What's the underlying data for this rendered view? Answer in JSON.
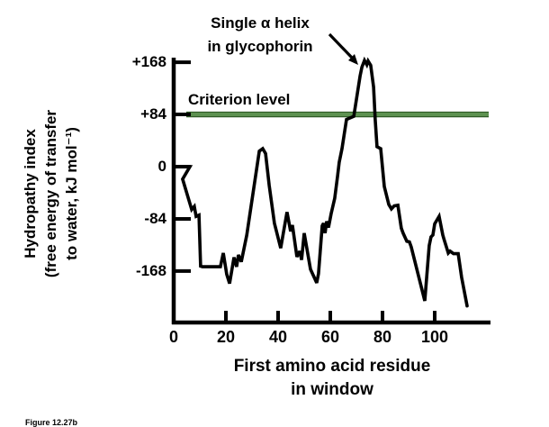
{
  "figure": {
    "annotation_line1": "Single α helix",
    "annotation_line2": "in glycophorin",
    "criterion_label": "Criterion level",
    "caption": "Figure 12.27b",
    "colors": {
      "background": "#ffffff",
      "axis": "#000000",
      "curve": "#000000",
      "text": "#000000",
      "criterion_line": "#5d9150",
      "criterion_line_edge": "#2f5b26"
    }
  },
  "chart_data": {
    "type": "line",
    "title": "",
    "xlabel": "First amino acid residue in window",
    "xlabel_lines": [
      "First amino acid residue",
      "in window"
    ],
    "ylabel": "Hydropathy index (free energy of transfer to water, kJ mol⁻¹)",
    "ylabel_lines": [
      "Hydropathy index",
      "(free energy of transfer",
      "to water, kJ mol⁻¹)"
    ],
    "xlim": [
      0,
      121
    ],
    "ylim": [
      -253,
      175
    ],
    "grid": false,
    "legend": "none",
    "x_ticks": [
      0,
      20,
      40,
      60,
      80,
      100
    ],
    "x_tick_labels": [
      "0",
      "20",
      "40",
      "60",
      "80",
      "100"
    ],
    "y_ticks": [
      168,
      84,
      0,
      -84,
      -168
    ],
    "y_tick_labels": [
      "+168",
      "+84",
      "0",
      "-84",
      "-168"
    ],
    "criterion_level": 84,
    "annotation": {
      "text": "Single α helix in glycophorin",
      "points_to_x": 74,
      "points_to_y": 168
    },
    "series": [
      {
        "name": "Glycophorin hydropathy index",
        "points": [
          [
            0,
            0
          ],
          [
            6.2,
            0
          ],
          [
            3.4,
            -20
          ],
          [
            6.9,
            -69
          ],
          [
            7.9,
            -64
          ],
          [
            8.6,
            -80
          ],
          [
            9.7,
            -78
          ],
          [
            10.3,
            -160
          ],
          [
            11,
            -161
          ],
          [
            17.9,
            -161
          ],
          [
            19,
            -139
          ],
          [
            20.3,
            -173
          ],
          [
            21.4,
            -188
          ],
          [
            23.1,
            -146
          ],
          [
            24.1,
            -161
          ],
          [
            24.8,
            -142
          ],
          [
            25.9,
            -153
          ],
          [
            28,
            -110
          ],
          [
            32.8,
            25
          ],
          [
            34.1,
            29
          ],
          [
            35.2,
            21
          ],
          [
            36.6,
            -30
          ],
          [
            38.6,
            -91
          ],
          [
            41,
            -131
          ],
          [
            43.4,
            -73
          ],
          [
            44.8,
            -104
          ],
          [
            45.5,
            -94
          ],
          [
            47.2,
            -145
          ],
          [
            48.3,
            -136
          ],
          [
            49,
            -150
          ],
          [
            50,
            -107
          ],
          [
            52.4,
            -165
          ],
          [
            54.8,
            -187
          ],
          [
            55.5,
            -172
          ],
          [
            56.9,
            -95
          ],
          [
            57.4,
            -91
          ],
          [
            58,
            -107
          ],
          [
            58.6,
            -88
          ],
          [
            59.3,
            -98
          ],
          [
            60.3,
            -76
          ],
          [
            61.7,
            -51
          ],
          [
            62.8,
            -15
          ],
          [
            63.4,
            7
          ],
          [
            64.5,
            29
          ],
          [
            66.2,
            76
          ],
          [
            69,
            81
          ],
          [
            71.4,
            146
          ],
          [
            72.1,
            160
          ],
          [
            73.1,
            171
          ],
          [
            74,
            164
          ],
          [
            74.5,
            170
          ],
          [
            75.5,
            163
          ],
          [
            76.6,
            128
          ],
          [
            77.2,
            76
          ],
          [
            77.9,
            32
          ],
          [
            79.3,
            29
          ],
          [
            80.7,
            -32
          ],
          [
            82.4,
            -61
          ],
          [
            83.4,
            -68
          ],
          [
            84.5,
            -63
          ],
          [
            85.9,
            -62
          ],
          [
            87.2,
            -99
          ],
          [
            87.9,
            -107
          ],
          [
            89.3,
            -120
          ],
          [
            90.3,
            -121
          ],
          [
            91,
            -129
          ],
          [
            96.2,
            -216
          ],
          [
            97.9,
            -127
          ],
          [
            98.6,
            -113
          ],
          [
            99.3,
            -110
          ],
          [
            100,
            -92
          ],
          [
            101.7,
            -80
          ],
          [
            103.1,
            -110
          ],
          [
            103.6,
            -117
          ],
          [
            105.2,
            -139
          ],
          [
            105.9,
            -136
          ],
          [
            107.2,
            -140
          ],
          [
            109,
            -140
          ],
          [
            110.3,
            -178
          ],
          [
            112.4,
            -224
          ]
        ]
      }
    ]
  }
}
